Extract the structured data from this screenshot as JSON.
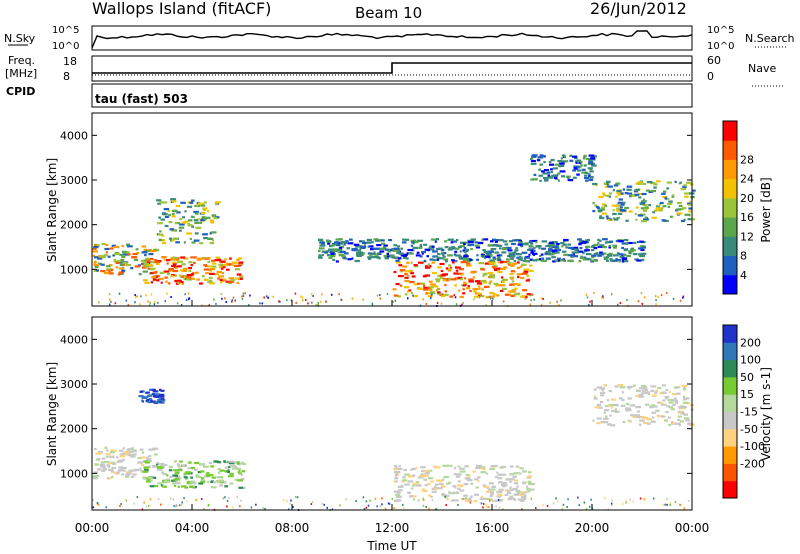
{
  "header": {
    "station": "Wallops Island (fitACF)",
    "beam": "Beam 10",
    "date": "26/Jun/2012"
  },
  "strips": {
    "nsky": {
      "label": "N.Sky",
      "ticks": [
        "10^5",
        "10^0"
      ]
    },
    "nsearch": {
      "label": "N.Search",
      "ticks": [
        "10^5",
        "10^0"
      ]
    },
    "freq": {
      "label_line1": "Freq.",
      "label_line2": "[MHz]",
      "ticks": [
        "18",
        "8"
      ]
    },
    "nave": {
      "label": "Nave",
      "ticks": [
        "60",
        "0"
      ]
    },
    "cpid": {
      "label": "CPID",
      "value": "tau (fast) 503"
    }
  },
  "chart_data": [
    {
      "type": "heatmap",
      "panel": "power",
      "ylabel": "Slant Range [km]",
      "xlabel": "Time UT",
      "xlim": [
        "00:00",
        "24:00"
      ],
      "ylim": [
        180,
        4500
      ],
      "y_ticks": [
        "1000",
        "2000",
        "3000",
        "4000"
      ],
      "x_ticks": [
        "00:00",
        "04:00",
        "08:00",
        "12:00",
        "16:00",
        "20:00",
        "00:00"
      ],
      "colorbar": {
        "label": "Power [dB]",
        "ticks": [
          "4",
          "8",
          "12",
          "16",
          "20",
          "24",
          "28"
        ],
        "colors": [
          "#0000ff",
          "#1f5fbf",
          "#3a8a7a",
          "#5aa64a",
          "#9cc43a",
          "#f2c200",
          "#ff9b00",
          "#ff5a00",
          "#ff0000"
        ]
      },
      "echo_regions": [
        {
          "t0": 0.0,
          "t1": 2.5,
          "r0": 900,
          "r1": 1600,
          "level": "medium-high"
        },
        {
          "t0": 2.5,
          "t1": 5.0,
          "r0": 1600,
          "r1": 2600,
          "level": "medium"
        },
        {
          "t0": 2.0,
          "t1": 6.0,
          "r0": 700,
          "r1": 1300,
          "level": "high"
        },
        {
          "t0": 12.0,
          "t1": 17.5,
          "r0": 400,
          "r1": 1200,
          "level": "high"
        },
        {
          "t0": 9.0,
          "t1": 22.0,
          "r0": 1200,
          "r1": 1700,
          "level": "low"
        },
        {
          "t0": 20.0,
          "t1": 24.0,
          "r0": 2100,
          "r1": 3000,
          "level": "medium"
        },
        {
          "t0": 17.5,
          "t1": 20.0,
          "r0": 3000,
          "r1": 3600,
          "level": "low"
        }
      ]
    },
    {
      "type": "heatmap",
      "panel": "velocity",
      "ylabel": "Slant Range [km]",
      "xlabel": "Time UT",
      "xlim": [
        "00:00",
        "24:00"
      ],
      "ylim": [
        180,
        4500
      ],
      "y_ticks": [
        "1000",
        "2000",
        "3000",
        "4000"
      ],
      "x_ticks": [
        "00:00",
        "04:00",
        "08:00",
        "12:00",
        "16:00",
        "20:00",
        "00:00"
      ],
      "colorbar": {
        "label": "Velocity [m s-1]",
        "ticks": [
          "200",
          "100",
          "50",
          "15",
          "-15",
          "-50",
          "-100",
          "-200"
        ],
        "colors": [
          "#2233cc",
          "#3377bb",
          "#2e8b57",
          "#77cc33",
          "#b5d99c",
          "#c8c8c8",
          "#ffd27f",
          "#ff9900",
          "#ff5500",
          "#ff0000"
        ]
      },
      "echo_regions": [
        {
          "t0": 0.0,
          "t1": 2.5,
          "r0": 900,
          "r1": 1600,
          "level": "ground"
        },
        {
          "t0": 2.0,
          "t1": 6.0,
          "r0": 700,
          "r1": 1300,
          "level": "positive"
        },
        {
          "t0": 1.8,
          "t1": 2.8,
          "r0": 2600,
          "r1": 2900,
          "level": "strong-positive"
        },
        {
          "t0": 12.0,
          "t1": 17.5,
          "r0": 400,
          "r1": 1200,
          "level": "ground"
        },
        {
          "t0": 20.0,
          "t1": 24.0,
          "r0": 2100,
          "r1": 3000,
          "level": "ground"
        }
      ]
    }
  ]
}
